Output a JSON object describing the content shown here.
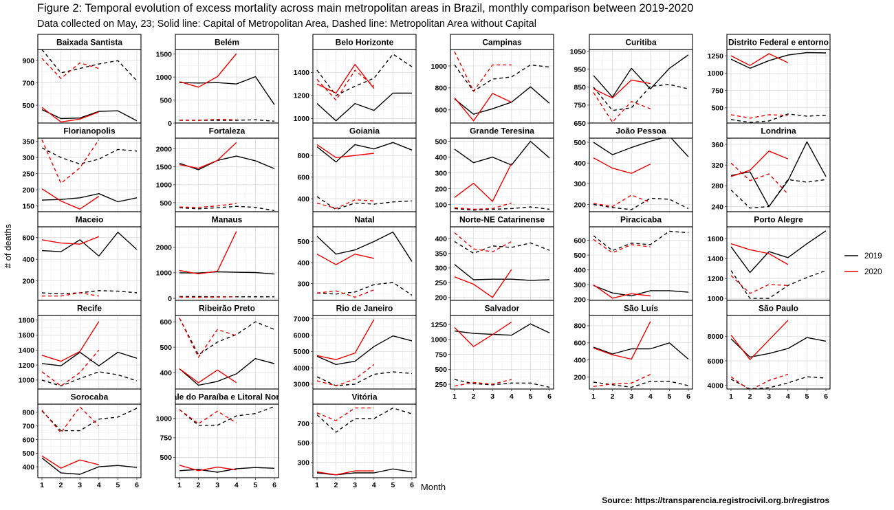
{
  "figure": {
    "title": "Figure 2: Temporal evolution of excess mortality across main metropolitan areas in Brazil, monthly comparison between 2019-2020",
    "subtitle": "Data collected on May, 23; Solid line: Capital of Metropolitan Area, Dashed line: Metropolitan Area without Capital",
    "source": "Source: https://transparencia.registrocivil.org.br/registros"
  },
  "chart_data": {
    "type": "line",
    "xlabel": "Month",
    "ylabel": "# of deaths",
    "x_ticks": [
      1,
      2,
      3,
      4,
      5,
      6
    ],
    "legend": {
      "position": "right",
      "entries": [
        {
          "label": "2019",
          "color": "#000000"
        },
        {
          "label": "2020",
          "color": "#ee0000"
        }
      ]
    },
    "grid": true,
    "line_styles": {
      "capital": "solid",
      "metro_without_capital": "dashed"
    },
    "panels": [
      {
        "name": "Baixada Santista",
        "ylim": [
          340,
          1000
        ],
        "yticks": [
          500,
          700,
          900
        ],
        "cap2019": [
          460,
          380,
          385,
          445,
          450,
          360
        ],
        "cap2020": [
          480,
          350,
          375,
          440
        ],
        "met2019": [
          1000,
          790,
          830,
          870,
          900,
          720
        ],
        "met2020": [
          920,
          740,
          880,
          830
        ]
      },
      {
        "name": "Belém",
        "ylim": [
          0,
          1600
        ],
        "yticks": [
          0,
          500,
          1000,
          1500
        ],
        "cap2019": [
          880,
          870,
          880,
          850,
          1010,
          400
        ],
        "cap2020": [
          900,
          780,
          1010,
          1510
        ],
        "met2019": [
          60,
          60,
          60,
          60,
          70,
          40
        ],
        "met2020": [
          65,
          60,
          80,
          70
        ]
      },
      {
        "name": "Belo Horizonte",
        "ylim": [
          960,
          1600
        ],
        "yticks": [
          1000,
          1200,
          1400
        ],
        "cap2019": [
          1130,
          980,
          1130,
          1070,
          1220,
          1220
        ],
        "cap2020": [
          1300,
          1220,
          1470,
          1260
        ],
        "met2019": [
          1420,
          1200,
          1280,
          1350,
          1560,
          1450
        ],
        "met2020": [
          1340,
          1160,
          1420,
          1280
        ]
      },
      {
        "name": "Campinas",
        "ylim": [
          480,
          1150
        ],
        "yticks": [
          600,
          800,
          1000
        ],
        "cap2019": [
          700,
          560,
          610,
          670,
          810,
          660
        ],
        "cap2020": [
          710,
          500,
          750,
          670
        ],
        "met2019": [
          1010,
          770,
          880,
          900,
          1010,
          990
        ],
        "met2020": [
          1130,
          770,
          1010,
          1010
        ]
      },
      {
        "name": "Curitiba",
        "ylim": [
          650,
          1060
        ],
        "yticks": [
          650,
          750,
          850,
          950,
          1050
        ],
        "cap2019": [
          915,
          795,
          955,
          840,
          955,
          1030
        ],
        "cap2020": [
          840,
          790,
          890,
          870
        ],
        "met2019": [
          850,
          720,
          735,
          855,
          865,
          840
        ],
        "met2020": [
          820,
          655,
          770,
          730
        ]
      },
      {
        "name": "Distrito Federal e entorno",
        "ylim": [
          280,
          1340
        ],
        "yticks": [
          500,
          750,
          1000,
          1250
        ],
        "cap2019": [
          1200,
          1070,
          1180,
          1260,
          1295,
          1290
        ],
        "cap2020": [
          1250,
          1110,
          1280,
          1150
        ],
        "met2019": [
          330,
          290,
          310,
          410,
          380,
          390
        ],
        "met2020": [
          400,
          350,
          400,
          390
        ]
      },
      {
        "name": "Florianopolis",
        "ylim": [
          132,
          360
        ],
        "yticks": [
          150,
          200,
          250,
          300,
          350
        ],
        "cap2019": [
          168,
          170,
          175,
          188,
          163,
          175
        ],
        "cap2020": [
          203,
          165,
          140,
          180
        ],
        "met2019": [
          330,
          300,
          280,
          295,
          325,
          320
        ],
        "met2020": [
          355,
          220,
          268,
          355
        ]
      },
      {
        "name": "Fortaleza",
        "ylim": [
          250,
          2300
        ],
        "yticks": [
          500,
          1000,
          1500,
          2000
        ],
        "cap2019": [
          1600,
          1420,
          1680,
          1800,
          1670,
          1450
        ],
        "cap2020": [
          1560,
          1460,
          1680,
          2180
        ],
        "met2019": [
          360,
          330,
          360,
          400,
          370,
          280
        ],
        "met2020": [
          380,
          370,
          410,
          480
        ]
      },
      {
        "name": "Goiania",
        "ylim": [
          280,
          960
        ],
        "yticks": [
          400,
          600,
          800
        ],
        "cap2019": [
          880,
          740,
          900,
          860,
          920,
          850
        ],
        "cap2020": [
          900,
          780,
          800,
          820
        ],
        "met2019": [
          420,
          300,
          360,
          350,
          370,
          380
        ],
        "met2020": [
          360,
          310,
          390,
          380
        ]
      },
      {
        "name": "Grande Teresina",
        "ylim": [
          55,
          520
        ],
        "yticks": [
          100,
          200,
          300,
          400,
          500
        ],
        "cap2019": [
          450,
          365,
          400,
          350,
          500,
          395
        ],
        "cap2020": [
          145,
          235,
          120,
          360
        ],
        "met2019": [
          75,
          65,
          70,
          75,
          85,
          70
        ],
        "met2020": [
          80,
          70,
          75,
          110
        ]
      },
      {
        "name": "João Pessoa",
        "ylim": [
          165,
          520
        ],
        "yticks": [
          200,
          300,
          400,
          500
        ],
        "cap2019": [
          500,
          440,
          475,
          505,
          530,
          430
        ],
        "cap2020": [
          425,
          375,
          350,
          395
        ],
        "met2019": [
          200,
          185,
          175,
          230,
          225,
          180
        ],
        "met2020": [
          205,
          190,
          245,
          210
        ]
      },
      {
        "name": "Londrina",
        "ylim": [
          230,
          372
        ],
        "yticks": [
          240,
          280,
          320,
          360
        ],
        "cap2019": [
          300,
          307,
          240,
          290,
          365,
          298
        ],
        "cap2020": [
          298,
          310,
          347,
          332
        ],
        "met2019": [
          272,
          237,
          240,
          292,
          287,
          292
        ],
        "met2020": [
          324,
          290,
          303,
          264
        ]
      },
      {
        "name": "Maceio",
        "ylim": [
          20,
          700
        ],
        "yticks": [
          200,
          400,
          600
        ],
        "cap2019": [
          480,
          470,
          580,
          430,
          650,
          490
        ],
        "cap2020": [
          580,
          550,
          540,
          610
        ],
        "met2019": [
          90,
          80,
          90,
          110,
          105,
          90
        ],
        "met2020": [
          60,
          60,
          90,
          60
        ]
      },
      {
        "name": "Manaus",
        "ylim": [
          -80,
          2800
        ],
        "yticks": [
          0,
          1000,
          2000
        ],
        "cap2019": [
          1000,
          990,
          1040,
          1020,
          1010,
          950
        ],
        "cap2020": [
          1090,
          960,
          1060,
          2620
        ],
        "met2019": [
          70,
          70,
          60,
          60,
          60,
          60
        ],
        "met2020": [
          50,
          40,
          50,
          60
        ]
      },
      {
        "name": "Natal",
        "ylim": [
          220,
          570
        ],
        "yticks": [
          300,
          400,
          500
        ],
        "cap2019": [
          525,
          440,
          460,
          500,
          545,
          405
        ],
        "cap2020": [
          440,
          390,
          440,
          420
        ],
        "met2019": [
          255,
          250,
          260,
          295,
          305,
          245
        ],
        "met2020": [
          255,
          265,
          235,
          270
        ]
      },
      {
        "name": "Norte-NE Catarinense",
        "ylim": [
          190,
          440
        ],
        "yticks": [
          200,
          250,
          300,
          350,
          400
        ],
        "cap2019": [
          312,
          260,
          262,
          262,
          258,
          260
        ],
        "cap2020": [
          270,
          245,
          200,
          295
        ],
        "met2019": [
          390,
          350,
          375,
          370,
          385,
          360
        ],
        "met2020": [
          420,
          365,
          355,
          390
        ]
      },
      {
        "name": "Piracicaba",
        "ylim": [
          195,
          690
        ],
        "yticks": [
          200,
          300,
          400,
          500,
          600
        ],
        "cap2019": [
          295,
          245,
          225,
          260,
          260,
          250
        ],
        "cap2020": [
          300,
          210,
          240,
          225
        ],
        "met2019": [
          630,
          530,
          580,
          570,
          660,
          650
        ],
        "met2020": [
          605,
          515,
          570,
          555
        ]
      },
      {
        "name": "Porto Alegre",
        "ylim": [
          980,
          1720
        ],
        "yticks": [
          1000,
          1200,
          1400,
          1600
        ],
        "cap2019": [
          1520,
          1260,
          1470,
          1410,
          1550,
          1680
        ],
        "cap2020": [
          1550,
          1490,
          1450,
          1340
        ],
        "met2019": [
          1280,
          1000,
          1000,
          1130,
          1210,
          1280
        ],
        "met2020": [
          1230,
          1050,
          1140,
          1130
        ]
      },
      {
        "name": "Recife",
        "ylim": [
          880,
          1860
        ],
        "yticks": [
          1000,
          1200,
          1400,
          1600,
          1800
        ],
        "cap2019": [
          1220,
          1190,
          1370,
          1190,
          1370,
          1290
        ],
        "cap2020": [
          1330,
          1250,
          1380,
          1780
        ],
        "met2019": [
          1000,
          920,
          1020,
          1110,
          1070,
          990
        ],
        "met2020": [
          1110,
          920,
          1100,
          1400
        ]
      },
      {
        "name": "Ribeirão Preto",
        "ylim": [
          335,
          625
        ],
        "yticks": [
          400,
          500,
          600
        ],
        "cap2019": [
          415,
          350,
          365,
          395,
          455,
          435
        ],
        "cap2020": [
          415,
          360,
          410,
          360
        ],
        "met2019": [
          615,
          470,
          520,
          550,
          600,
          570
        ],
        "met2020": [
          615,
          460,
          570,
          545
        ]
      },
      {
        "name": "Rio de Janeiro",
        "ylim": [
          2700,
          7200
        ],
        "yticks": [
          3000,
          4000,
          5000,
          6000,
          7000
        ],
        "cap2019": [
          4700,
          4200,
          4400,
          5300,
          5950,
          5650
        ],
        "cap2020": [
          4750,
          4500,
          4900,
          6950
        ],
        "met2019": [
          3450,
          2900,
          3000,
          3600,
          3750,
          3650
        ],
        "met2020": [
          3200,
          2900,
          3300,
          4200
        ]
      },
      {
        "name": "Salvador",
        "ylim": [
          170,
          1400
        ],
        "yticks": [
          250,
          500,
          750,
          1000,
          1250
        ],
        "cap2019": [
          1140,
          1100,
          1085,
          1070,
          1260,
          1110
        ],
        "cap2020": [
          1200,
          880,
          1080,
          1290
        ],
        "met2019": [
          330,
          260,
          240,
          270,
          270,
          200
        ],
        "met2020": [
          220,
          280,
          250,
          330
        ]
      },
      {
        "name": "São Luís",
        "ylim": [
          60,
          920
        ],
        "yticks": [
          200,
          400,
          600,
          800
        ],
        "cap2019": [
          550,
          470,
          530,
          530,
          600,
          410
        ],
        "cap2020": [
          540,
          460,
          410,
          850
        ],
        "met2019": [
          140,
          110,
          80,
          150,
          150,
          100
        ],
        "met2020": [
          90,
          120,
          130,
          230
        ]
      },
      {
        "name": "São Paulo",
        "ylim": [
          3700,
          9700
        ],
        "yticks": [
          4000,
          6000,
          8000
        ],
        "cap2019": [
          7800,
          6300,
          6600,
          7000,
          7900,
          7600
        ],
        "cap2020": [
          8100,
          6100,
          7700,
          9300
        ],
        "met2019": [
          4500,
          3700,
          3800,
          4200,
          4700,
          4600
        ],
        "met2020": [
          4700,
          3600,
          4400,
          4900
        ]
      },
      {
        "name": "Sorocaba",
        "ylim": [
          320,
          860
        ],
        "yticks": [
          400,
          500,
          600,
          700,
          800
        ],
        "cap2019": [
          465,
          355,
          345,
          400,
          410,
          395
        ],
        "cap2020": [
          480,
          390,
          450,
          415
        ],
        "met2019": [
          810,
          665,
          665,
          750,
          765,
          830
        ],
        "met2020": [
          815,
          650,
          840,
          700
        ]
      },
      {
        "name": "Vale do Paraíba e Litoral Norte",
        "ylim": [
          240,
          1180
        ],
        "yticks": [
          500,
          750,
          1000
        ],
        "cap2019": [
          330,
          345,
          310,
          355,
          370,
          360
        ],
        "cap2020": [
          400,
          330,
          375,
          340
        ],
        "met2019": [
          1110,
          910,
          910,
          1030,
          1060,
          1150
        ],
        "met2020": [
          1110,
          930,
          1090,
          940
        ]
      },
      {
        "name": "Vitória",
        "ylim": [
          140,
          900
        ],
        "yticks": [
          300,
          500,
          700
        ],
        "cap2019": [
          190,
          170,
          190,
          190,
          230,
          200
        ],
        "cap2020": [
          200,
          170,
          210,
          210
        ],
        "met2019": [
          790,
          610,
          750,
          750,
          860,
          800
        ],
        "met2020": [
          810,
          730,
          860,
          860
        ]
      }
    ]
  }
}
